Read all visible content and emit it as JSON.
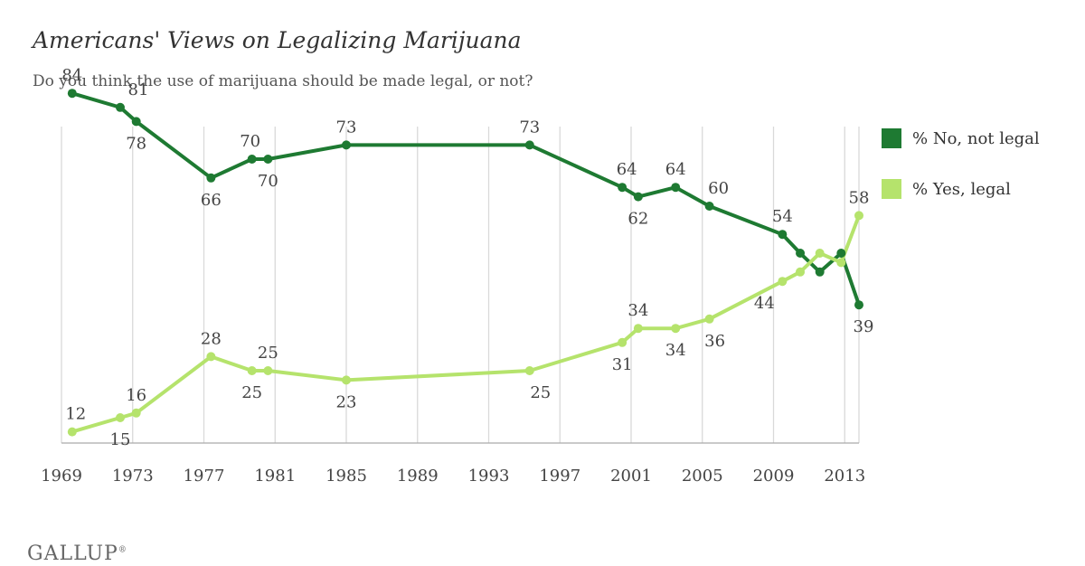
{
  "chart_data": {
    "type": "line",
    "title": "Americans' Views on Legalizing Marijuana",
    "subtitle": "Do you think the use of marijuana should be made legal, or not?",
    "x_ticks": [
      "1969",
      "1973",
      "1977",
      "1981",
      "1985",
      "1989",
      "1993",
      "1997",
      "2001",
      "2005",
      "2009",
      "2013"
    ],
    "xlim": [
      1969,
      2013.8
    ],
    "ylim": [
      0,
      90
    ],
    "grid": "vertical",
    "legend_position": "right",
    "series": [
      {
        "name": "% No, not legal",
        "color": "#1e7a32",
        "points": [
          {
            "x": 1969.6,
            "y": 84,
            "label": "84"
          },
          {
            "x": 1972.3,
            "y": 81,
            "label": "81"
          },
          {
            "x": 1973.2,
            "y": 78,
            "label": "78"
          },
          {
            "x": 1977.4,
            "y": 66,
            "label": "66"
          },
          {
            "x": 1979.7,
            "y": 70,
            "label": "70"
          },
          {
            "x": 1980.6,
            "y": 70,
            "label": "70"
          },
          {
            "x": 1985.0,
            "y": 73,
            "label": "73"
          },
          {
            "x": 1995.3,
            "y": 73,
            "label": "73"
          },
          {
            "x": 2000.5,
            "y": 64,
            "label": "64"
          },
          {
            "x": 2001.4,
            "y": 62,
            "label": "62"
          },
          {
            "x": 2003.5,
            "y": 64,
            "label": "64"
          },
          {
            "x": 2005.4,
            "y": 60,
            "label": "60"
          },
          {
            "x": 2009.5,
            "y": 54,
            "label": "54"
          },
          {
            "x": 2010.5,
            "y": 50,
            "label": ""
          },
          {
            "x": 2011.6,
            "y": 46,
            "label": ""
          },
          {
            "x": 2012.8,
            "y": 50,
            "label": ""
          },
          {
            "x": 2013.8,
            "y": 39,
            "label": "39"
          }
        ]
      },
      {
        "name": "% Yes, legal",
        "color": "#b5e36c",
        "points": [
          {
            "x": 1969.6,
            "y": 12,
            "label": "12"
          },
          {
            "x": 1972.3,
            "y": 15,
            "label": "15"
          },
          {
            "x": 1973.2,
            "y": 16,
            "label": "16"
          },
          {
            "x": 1977.4,
            "y": 28,
            "label": "28"
          },
          {
            "x": 1979.7,
            "y": 25,
            "label": "25"
          },
          {
            "x": 1980.6,
            "y": 25,
            "label": "25"
          },
          {
            "x": 1985.0,
            "y": 23,
            "label": "23"
          },
          {
            "x": 1995.3,
            "y": 25,
            "label": "25"
          },
          {
            "x": 2000.5,
            "y": 31,
            "label": "31"
          },
          {
            "x": 2001.4,
            "y": 34,
            "label": "34"
          },
          {
            "x": 2003.5,
            "y": 34,
            "label": "34"
          },
          {
            "x": 2005.4,
            "y": 36,
            "label": "36"
          },
          {
            "x": 2009.5,
            "y": 44,
            "label": "44"
          },
          {
            "x": 2010.5,
            "y": 46,
            "label": ""
          },
          {
            "x": 2011.6,
            "y": 50,
            "label": ""
          },
          {
            "x": 2012.8,
            "y": 48,
            "label": ""
          },
          {
            "x": 2013.8,
            "y": 58,
            "label": "58"
          }
        ]
      }
    ]
  },
  "footer": {
    "logo": "GALLUP",
    "logo_mark": "®"
  }
}
